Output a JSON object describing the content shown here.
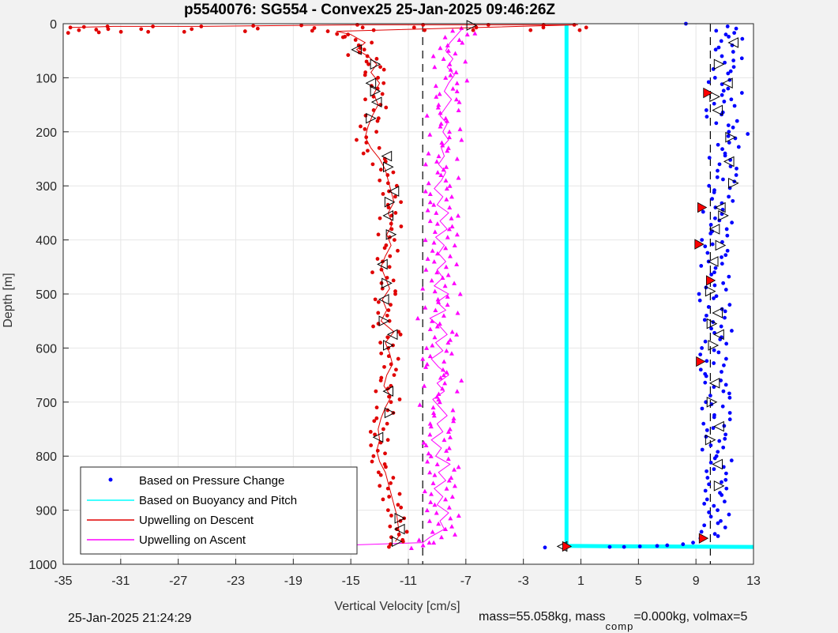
{
  "chart_data": {
    "type": "scatter",
    "title": "p5540076: SG554 - Convex25 25-Jan-2025 09:46:26Z",
    "xlabel": "Vertical Velocity [cm/s]",
    "ylabel": "Depth [m]",
    "xlim": [
      -35,
      13
    ],
    "ylim": [
      0,
      1000
    ],
    "y_reversed": true,
    "grid": true,
    "legend_position": "bottom-left",
    "x_ticks": [
      "-35",
      "-31",
      "-27",
      "-23",
      "-19",
      "-15",
      "-11",
      "-7",
      "-3",
      "1",
      "5",
      "9",
      "13"
    ],
    "y_ticks": [
      "0",
      "100",
      "200",
      "300",
      "400",
      "500",
      "600",
      "700",
      "800",
      "900",
      "1000"
    ],
    "reference_lines": [
      -10,
      10
    ],
    "series": [
      {
        "name": "Based on Pressure Change",
        "color": "#0000ff",
        "marker": "dot",
        "points": [
          [
            11.2,
            5
          ],
          [
            11.5,
            20
          ],
          [
            10.8,
            40
          ],
          [
            11.6,
            60
          ],
          [
            11.0,
            80
          ],
          [
            10.6,
            100
          ],
          [
            11.4,
            120
          ],
          [
            10.9,
            140
          ],
          [
            10.5,
            160
          ],
          [
            11.1,
            180
          ],
          [
            11.8,
            200
          ],
          [
            11.2,
            220
          ],
          [
            10.7,
            240
          ],
          [
            11.3,
            260
          ],
          [
            11.0,
            280
          ],
          [
            10.6,
            300
          ],
          [
            10.9,
            320
          ],
          [
            10.3,
            340
          ],
          [
            10.8,
            360
          ],
          [
            10.4,
            380
          ],
          [
            10.2,
            400
          ],
          [
            10.6,
            420
          ],
          [
            10.1,
            440
          ],
          [
            10.5,
            460
          ],
          [
            10.3,
            480
          ],
          [
            10.0,
            500
          ],
          [
            10.6,
            520
          ],
          [
            10.2,
            540
          ],
          [
            10.7,
            560
          ],
          [
            10.4,
            580
          ],
          [
            10.1,
            600
          ],
          [
            10.3,
            620
          ],
          [
            10.0,
            640
          ],
          [
            10.4,
            660
          ],
          [
            10.8,
            680
          ],
          [
            10.2,
            700
          ],
          [
            10.6,
            720
          ],
          [
            10.3,
            740
          ],
          [
            10.5,
            760
          ],
          [
            10.2,
            780
          ],
          [
            10.7,
            800
          ],
          [
            10.3,
            820
          ],
          [
            10.6,
            840
          ],
          [
            10.4,
            860
          ],
          [
            10.2,
            880
          ],
          [
            10.5,
            900
          ],
          [
            10.3,
            920
          ],
          [
            10.1,
            940
          ],
          [
            9.5,
            952
          ],
          [
            8.8,
            960
          ],
          [
            8.1,
            963
          ],
          [
            7.0,
            965
          ],
          [
            6.3,
            966
          ],
          [
            5.1,
            967
          ],
          [
            4.0,
            968
          ],
          [
            3.0,
            968
          ],
          [
            -1.5,
            969
          ],
          [
            8.3,
            0
          ]
        ]
      },
      {
        "name": "Based on Buoyancy and Pitch",
        "color": "#00ffff",
        "marker": "line",
        "points": [
          [
            0.0,
            3
          ],
          [
            0.0,
            100
          ],
          [
            0.0,
            200
          ],
          [
            0.0,
            300
          ],
          [
            0.0,
            400
          ],
          [
            0.0,
            500
          ],
          [
            0.0,
            600
          ],
          [
            0.0,
            700
          ],
          [
            0.0,
            800
          ],
          [
            0.0,
            900
          ],
          [
            0.0,
            966
          ],
          [
            5,
            967
          ],
          [
            13,
            968
          ]
        ]
      },
      {
        "name": "Upwelling on Descent",
        "color": "#e00000",
        "marker": "dot-line",
        "points": [
          [
            -34.5,
            7
          ],
          [
            -33,
            6
          ],
          [
            -31.5,
            5
          ],
          [
            -29,
            5
          ],
          [
            -26,
            5
          ],
          [
            -22,
            4
          ],
          [
            -18,
            3
          ],
          [
            -14,
            2
          ],
          [
            -10,
            2
          ],
          [
            -6,
            2
          ],
          [
            -2,
            2
          ],
          [
            0.8,
            2
          ],
          [
            -16,
            14
          ],
          [
            -15,
            20
          ],
          [
            -14,
            35
          ],
          [
            -14.6,
            48
          ],
          [
            -13.8,
            60
          ],
          [
            -13.2,
            75
          ],
          [
            -13.6,
            90
          ],
          [
            -13.0,
            110
          ],
          [
            -13.4,
            130
          ],
          [
            -13.1,
            150
          ],
          [
            -13.5,
            170
          ],
          [
            -13.8,
            190
          ],
          [
            -14.0,
            210
          ],
          [
            -13.6,
            230
          ],
          [
            -13.0,
            250
          ],
          [
            -12.6,
            270
          ],
          [
            -12.4,
            290
          ],
          [
            -12.2,
            310
          ],
          [
            -12.0,
            330
          ],
          [
            -12.4,
            350
          ],
          [
            -12.1,
            370
          ],
          [
            -12.5,
            390
          ],
          [
            -12.2,
            410
          ],
          [
            -12.6,
            430
          ],
          [
            -12.9,
            450
          ],
          [
            -12.6,
            470
          ],
          [
            -12.3,
            490
          ],
          [
            -12.8,
            510
          ],
          [
            -12.5,
            530
          ],
          [
            -12.9,
            550
          ],
          [
            -12.0,
            570
          ],
          [
            -12.6,
            590
          ],
          [
            -12.3,
            610
          ],
          [
            -12.1,
            630
          ],
          [
            -12.5,
            650
          ],
          [
            -12.7,
            670
          ],
          [
            -12.2,
            690
          ],
          [
            -12.6,
            710
          ],
          [
            -12.9,
            730
          ],
          [
            -13.1,
            750
          ],
          [
            -13.0,
            770
          ],
          [
            -13.2,
            790
          ],
          [
            -13.0,
            810
          ],
          [
            -12.6,
            830
          ],
          [
            -12.4,
            850
          ],
          [
            -12.2,
            870
          ],
          [
            -12.0,
            890
          ],
          [
            -11.8,
            910
          ],
          [
            -11.7,
            930
          ],
          [
            -11.6,
            945
          ],
          [
            -11.9,
            958
          ]
        ]
      },
      {
        "name": "Upwelling on Ascent",
        "color": "#ff00ff",
        "marker": "triangle-line",
        "points": [
          [
            -16.8,
            966
          ],
          [
            -10.0,
            960
          ],
          [
            -9.5,
            950
          ],
          [
            -8.5,
            935
          ],
          [
            -8.8,
            920
          ],
          [
            -8.2,
            905
          ],
          [
            -9.0,
            890
          ],
          [
            -8.6,
            875
          ],
          [
            -9.2,
            860
          ],
          [
            -8.4,
            845
          ],
          [
            -8.9,
            830
          ],
          [
            -8.1,
            815
          ],
          [
            -9.1,
            800
          ],
          [
            -8.7,
            785
          ],
          [
            -9.4,
            770
          ],
          [
            -8.6,
            755
          ],
          [
            -9.0,
            740
          ],
          [
            -8.3,
            725
          ],
          [
            -8.8,
            710
          ],
          [
            -9.3,
            695
          ],
          [
            -8.5,
            680
          ],
          [
            -9.0,
            665
          ],
          [
            -8.2,
            650
          ],
          [
            -8.9,
            635
          ],
          [
            -9.4,
            620
          ],
          [
            -8.6,
            605
          ],
          [
            -9.1,
            590
          ],
          [
            -8.3,
            575
          ],
          [
            -8.8,
            560
          ],
          [
            -9.5,
            545
          ],
          [
            -8.4,
            530
          ],
          [
            -9.0,
            515
          ],
          [
            -8.2,
            500
          ],
          [
            -9.2,
            485
          ],
          [
            -8.6,
            470
          ],
          [
            -9.0,
            455
          ],
          [
            -8.4,
            440
          ],
          [
            -8.9,
            425
          ],
          [
            -8.5,
            410
          ],
          [
            -9.1,
            395
          ],
          [
            -8.3,
            380
          ],
          [
            -8.8,
            365
          ],
          [
            -8.2,
            350
          ],
          [
            -9.0,
            335
          ],
          [
            -8.6,
            320
          ],
          [
            -9.2,
            305
          ],
          [
            -8.7,
            290
          ],
          [
            -8.4,
            275
          ],
          [
            -8.9,
            260
          ],
          [
            -8.5,
            245
          ],
          [
            -8.7,
            230
          ],
          [
            -8.2,
            215
          ],
          [
            -8.6,
            200
          ],
          [
            -8.3,
            185
          ],
          [
            -8.8,
            170
          ],
          [
            -8.4,
            155
          ],
          [
            -8.0,
            140
          ],
          [
            -8.5,
            125
          ],
          [
            -8.2,
            110
          ],
          [
            -7.8,
            95
          ],
          [
            -8.3,
            80
          ],
          [
            -7.9,
            65
          ],
          [
            -8.4,
            50
          ],
          [
            -8.1,
            35
          ],
          [
            -7.6,
            20
          ],
          [
            -7.2,
            8
          ]
        ]
      }
    ],
    "markers": {
      "open_triangles": [
        [
          -6.6,
          3
        ],
        [
          -14.6,
          48
        ],
        [
          -13.3,
          75
        ],
        [
          -13.6,
          110
        ],
        [
          -13.3,
          125
        ],
        [
          -13.2,
          145
        ],
        [
          -13.6,
          175
        ],
        [
          -12.5,
          245
        ],
        [
          -12.4,
          265
        ],
        [
          -12.0,
          310
        ],
        [
          -12.3,
          330
        ],
        [
          -12.4,
          355
        ],
        [
          -12.2,
          390
        ],
        [
          -12.8,
          445
        ],
        [
          -12.5,
          480
        ],
        [
          -12.7,
          510
        ],
        [
          -12.7,
          550
        ],
        [
          -12.1,
          575
        ],
        [
          -12.4,
          595
        ],
        [
          -12.4,
          680
        ],
        [
          -12.3,
          720
        ],
        [
          -13.1,
          765
        ],
        [
          -11.6,
          915
        ],
        [
          -11.6,
          935
        ],
        [
          -11.8,
          958
        ],
        [
          11.6,
          35
        ],
        [
          10.6,
          75
        ],
        [
          11.2,
          110
        ],
        [
          10.3,
          135
        ],
        [
          10.5,
          160
        ],
        [
          11.4,
          210
        ],
        [
          11.3,
          255
        ],
        [
          11.6,
          295
        ],
        [
          10.7,
          340
        ],
        [
          10.9,
          355
        ],
        [
          10.3,
          380
        ],
        [
          10.7,
          410
        ],
        [
          10.2,
          440
        ],
        [
          10.0,
          495
        ],
        [
          10.5,
          535
        ],
        [
          10.1,
          555
        ],
        [
          10.6,
          575
        ],
        [
          10.2,
          595
        ],
        [
          10.3,
          665
        ],
        [
          10.1,
          700
        ],
        [
          10.6,
          745
        ],
        [
          10.0,
          770
        ],
        [
          10.5,
          815
        ],
        [
          10.6,
          855
        ],
        [
          -0.3,
          967
        ]
      ],
      "red_triangles": [
        [
          9.8,
          128
        ],
        [
          9.4,
          340
        ],
        [
          9.2,
          408
        ],
        [
          10.0,
          475
        ],
        [
          9.3,
          625
        ],
        [
          9.5,
          952
        ],
        [
          0.0,
          967
        ]
      ]
    }
  },
  "footer": {
    "timestamp": "25-Jan-2025 21:24:29",
    "mass_text": "mass=55.058kg, mass",
    "mass_subscript": "comp",
    "mass_tail": "=0.000kg, volmax=5"
  }
}
